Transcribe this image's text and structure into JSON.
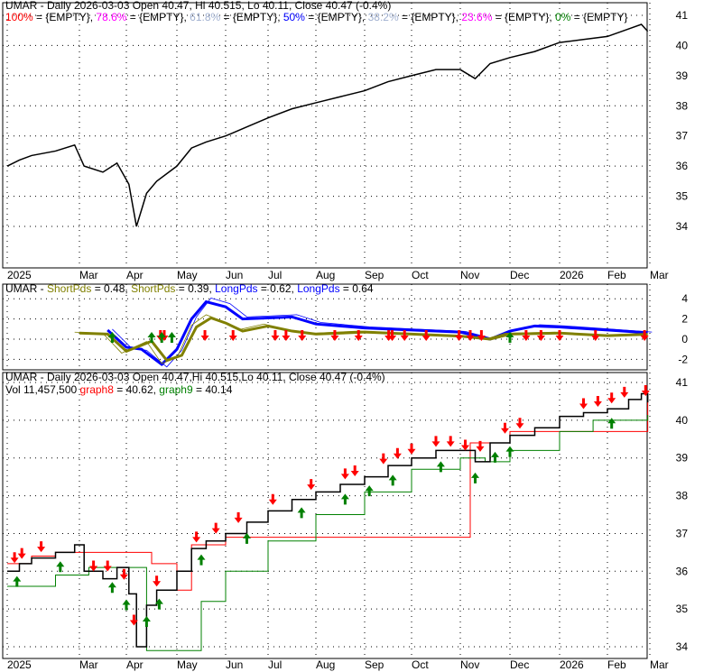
{
  "chart_data": [
    {
      "type": "line",
      "panel": "price-fib",
      "title": "UMAR - Daily 2026-03-03 Open 40.47, Hi 40.515, Lo 40.11, Close 40.47 (-0.4%)",
      "legend": [
        {
          "label": "100% = {EMPTY}",
          "color": "#ff0000"
        },
        {
          "label": "78.6% = {EMPTY}",
          "color": "#ff00ff"
        },
        {
          "label": "61.8% = {EMPTY}",
          "color": "#a0b0d0"
        },
        {
          "label": "50% = {EMPTY}",
          "color": "#0000ff"
        },
        {
          "label": "38.2% = {EMPTY}",
          "color": "#a0b0d0"
        },
        {
          "label": "23.6% = {EMPTY}",
          "color": "#ff00ff"
        },
        {
          "label": "0% = {EMPTY}",
          "color": "#008000"
        }
      ],
      "yticks": [
        34,
        35,
        36,
        37,
        38,
        39,
        40,
        41
      ],
      "ylim": [
        33.6,
        41.5
      ],
      "close": [
        [
          0,
          36.0
        ],
        [
          0.5,
          36.2
        ],
        [
          1,
          36.35
        ],
        [
          1.5,
          36.5
        ],
        [
          1.9,
          36.7
        ],
        [
          2.1,
          36.0
        ],
        [
          2.5,
          35.8
        ],
        [
          2.8,
          36.1
        ],
        [
          3.05,
          35.4
        ],
        [
          3.2,
          34.0
        ],
        [
          3.4,
          35.1
        ],
        [
          3.6,
          35.5
        ],
        [
          4,
          36.0
        ],
        [
          4.3,
          36.6
        ],
        [
          4.6,
          36.8
        ],
        [
          5,
          37.0
        ],
        [
          5.5,
          37.3
        ],
        [
          6,
          37.6
        ],
        [
          6.5,
          37.9
        ],
        [
          7,
          38.1
        ],
        [
          7.5,
          38.3
        ],
        [
          8,
          38.5
        ],
        [
          8.5,
          38.8
        ],
        [
          9,
          39.0
        ],
        [
          9.5,
          39.2
        ],
        [
          10,
          39.2
        ],
        [
          10.3,
          38.9
        ],
        [
          10.6,
          39.4
        ],
        [
          11,
          39.6
        ],
        [
          11.5,
          39.8
        ],
        [
          12,
          40.1
        ],
        [
          12.5,
          40.2
        ],
        [
          13,
          40.3
        ],
        [
          13.5,
          40.55
        ],
        [
          13.8,
          40.7
        ],
        [
          13.95,
          40.47
        ]
      ]
    },
    {
      "type": "line",
      "panel": "oscillator",
      "title_prefix": "UMAR - ",
      "legend": [
        {
          "label": "ShortPds = 0.48",
          "color": "#808000"
        },
        {
          "label": "ShortPds = 0.39",
          "color": "#808000"
        },
        {
          "label": "LongPds = 0.62",
          "color": "#0000ff"
        },
        {
          "label": "LongPds = 0.64",
          "color": "#0000ff"
        }
      ],
      "yticks": [
        -2,
        0,
        2,
        4
      ],
      "long": [
        [
          2.6,
          0.9
        ],
        [
          3,
          -0.8
        ],
        [
          3.3,
          -1.0
        ],
        [
          3.7,
          -2.5
        ],
        [
          4,
          -1.0
        ],
        [
          4.3,
          2.0
        ],
        [
          4.6,
          3.7
        ],
        [
          5,
          3.2
        ],
        [
          5.4,
          2.0
        ],
        [
          6,
          2.1
        ],
        [
          6.5,
          2.2
        ],
        [
          7,
          1.5
        ],
        [
          8,
          1.1
        ],
        [
          9,
          0.9
        ],
        [
          10,
          0.7
        ],
        [
          10.6,
          0.0
        ],
        [
          11,
          0.8
        ],
        [
          11.5,
          1.3
        ],
        [
          12,
          1.2
        ],
        [
          13,
          0.9
        ],
        [
          13.95,
          0.64
        ]
      ],
      "short": [
        [
          2,
          0.6
        ],
        [
          2.6,
          0.5
        ],
        [
          3,
          -1.2
        ],
        [
          3.3,
          -0.6
        ],
        [
          3.5,
          -0.2
        ],
        [
          3.8,
          -2.1
        ],
        [
          4.1,
          -1.6
        ],
        [
          4.4,
          1.2
        ],
        [
          4.7,
          2.1
        ],
        [
          5,
          1.6
        ],
        [
          5.4,
          0.8
        ],
        [
          6,
          1.3
        ],
        [
          6.5,
          0.8
        ],
        [
          7,
          0.5
        ],
        [
          8,
          0.7
        ],
        [
          9,
          0.5
        ],
        [
          10,
          0.3
        ],
        [
          10.6,
          0.0
        ],
        [
          11,
          0.5
        ],
        [
          12,
          0.6
        ],
        [
          13,
          0.35
        ],
        [
          13.95,
          0.48
        ]
      ],
      "down_arrows": [
        4.9,
        5.0,
        6.1,
        6.9,
        8.2,
        8.5,
        8.95,
        9.85,
        10.5,
        11.35,
        11.45,
        11.8,
        12.4,
        13.3,
        13.6,
        13.9,
        15.1,
        15.5,
        16.0,
        17.0,
        18.5
      ],
      "up_arrows": [
        2.7,
        3.5,
        3.7,
        3.9,
        11.0
      ]
    },
    {
      "type": "line",
      "panel": "price-stops",
      "title": "UMAR - Daily 2026-03-03 Open 40.47,Hi 40.515,Lo 40.11, Close 40.47 (-0.4%)",
      "legend": [
        {
          "label": "Vol 11,457,500",
          "color": "#000000"
        },
        {
          "label": "graph8 = 40.62",
          "color": "#ff0000"
        },
        {
          "label": "graph9 = 40.14",
          "color": "#008000"
        }
      ],
      "yticks": [
        34,
        35,
        36,
        37,
        38,
        39,
        40,
        41
      ],
      "ylim": [
        33.8,
        41.2
      ],
      "upper_stop": [
        [
          0,
          36.2
        ],
        [
          1,
          36.4
        ],
        [
          1.5,
          36.5
        ],
        [
          3,
          36.5
        ],
        [
          3.5,
          36.2
        ],
        [
          4.0,
          35.5
        ],
        [
          4.3,
          36.7
        ],
        [
          5,
          36.9
        ],
        [
          10.2,
          39.4
        ],
        [
          10.6,
          39.4
        ],
        [
          11,
          39.7
        ],
        [
          13.95,
          40.62
        ]
      ],
      "lower_stop": [
        [
          0,
          35.6
        ],
        [
          1.5,
          35.9
        ],
        [
          2.2,
          36.1
        ],
        [
          3.4,
          33.9
        ],
        [
          4.2,
          33.9
        ],
        [
          4.5,
          35.2
        ],
        [
          5,
          36.0
        ],
        [
          6,
          36.8
        ],
        [
          7,
          37.5
        ],
        [
          8,
          38.1
        ],
        [
          9,
          38.7
        ],
        [
          10,
          39.0
        ],
        [
          10.5,
          38.9
        ],
        [
          11,
          39.2
        ],
        [
          12,
          39.7
        ],
        [
          12.7,
          40.0
        ],
        [
          13.95,
          40.14
        ]
      ],
      "down_arrows": [
        0.3,
        0.6,
        1.2,
        2.3,
        2.6,
        2.95,
        3.15,
        3.6,
        4.4,
        4.8,
        5.3,
        6.1,
        6.9,
        7.6,
        7.8,
        8.4,
        8.7,
        9.0,
        9.5,
        9.8,
        10.1,
        10.4,
        10.9,
        11.2,
        12.5,
        12.8,
        13.1,
        13.4,
        13.9
      ],
      "up_arrows": [
        0.4,
        1.6,
        2.7,
        3.0,
        3.4,
        3.65,
        4.5,
        5.5,
        6.7,
        7.6,
        8.1,
        8.6,
        9.6,
        10.3,
        10.7,
        11.0,
        13.1
      ]
    },
    {
      "type": "axis",
      "xticks": [
        "2025",
        "Mar",
        "Apr",
        "May",
        "Jun",
        "Jul",
        "Aug",
        "Sep",
        "Oct",
        "Nov",
        "Dec",
        "2026",
        "Feb",
        "Mar"
      ]
    }
  ]
}
